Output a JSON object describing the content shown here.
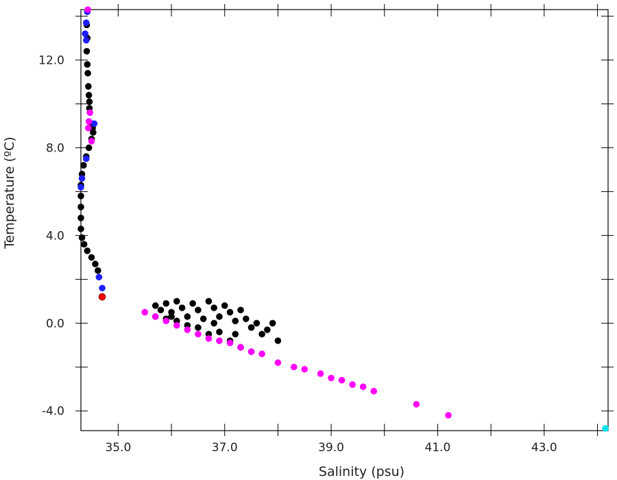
{
  "chart_data": {
    "type": "scatter",
    "title": "",
    "xlabel": "Salinity (psu)",
    "ylabel": "Temperature (ºC)",
    "xlim": [
      34.3,
      44.2
    ],
    "ylim": [
      -4.9,
      14.3
    ],
    "x_ticks": [
      35,
      37,
      39,
      41,
      43
    ],
    "x_tick_labels": [
      "35.0",
      "37.0",
      "39.0",
      "41.0",
      "43.0"
    ],
    "y_ticks": [
      -4,
      0,
      4,
      8,
      12
    ],
    "y_tick_labels": [
      "-4.0",
      "0.0",
      "4.0",
      "8.0",
      "12.0"
    ],
    "grid": false,
    "legend": "none",
    "series": [
      {
        "color": "#000000",
        "points": [
          [
            34.41,
            13.6
          ],
          [
            34.42,
            13.0
          ],
          [
            34.41,
            12.4
          ],
          [
            34.42,
            11.8
          ],
          [
            34.43,
            11.4
          ],
          [
            34.44,
            10.8
          ],
          [
            34.45,
            10.4
          ],
          [
            34.46,
            10.1
          ],
          [
            34.46,
            9.8
          ],
          [
            34.5,
            9.1
          ],
          [
            34.52,
            8.9
          ],
          [
            34.53,
            8.7
          ],
          [
            34.5,
            8.4
          ],
          [
            34.45,
            8.0
          ],
          [
            34.4,
            7.6
          ],
          [
            34.35,
            7.2
          ],
          [
            34.32,
            6.8
          ],
          [
            34.3,
            6.3
          ],
          [
            34.28,
            5.8
          ],
          [
            34.28,
            5.3
          ],
          [
            34.29,
            4.8
          ],
          [
            34.3,
            4.3
          ],
          [
            34.32,
            3.9
          ],
          [
            34.36,
            3.6
          ],
          [
            34.42,
            3.3
          ],
          [
            34.5,
            3.0
          ],
          [
            34.57,
            2.7
          ],
          [
            34.62,
            2.4
          ],
          [
            35.7,
            0.8
          ],
          [
            35.8,
            0.6
          ],
          [
            35.9,
            0.9
          ],
          [
            36.0,
            0.5
          ],
          [
            36.1,
            1.0
          ],
          [
            36.2,
            0.7
          ],
          [
            36.3,
            0.3
          ],
          [
            36.4,
            0.9
          ],
          [
            36.5,
            0.6
          ],
          [
            36.6,
            0.2
          ],
          [
            36.7,
            1.0
          ],
          [
            36.8,
            0.7
          ],
          [
            36.9,
            0.3
          ],
          [
            37.0,
            0.8
          ],
          [
            37.1,
            0.5
          ],
          [
            37.2,
            0.1
          ],
          [
            37.3,
            0.6
          ],
          [
            37.4,
            0.2
          ],
          [
            37.5,
            -0.2
          ],
          [
            37.6,
            0.0
          ],
          [
            37.7,
            -0.5
          ],
          [
            37.8,
            -0.3
          ],
          [
            37.9,
            0.0
          ],
          [
            38.0,
            -0.8
          ],
          [
            37.5,
            -1.3
          ],
          [
            37.3,
            -1.1
          ],
          [
            37.1,
            -0.8
          ],
          [
            36.9,
            -0.4
          ],
          [
            36.7,
            -0.5
          ],
          [
            36.5,
            -0.2
          ],
          [
            36.3,
            -0.1
          ],
          [
            36.1,
            0.1
          ],
          [
            35.9,
            0.2
          ],
          [
            35.7,
            0.3
          ],
          [
            36.0,
            0.3
          ],
          [
            36.8,
            0.0
          ],
          [
            37.2,
            -0.5
          ]
        ]
      },
      {
        "color": "#1f1fff",
        "points": [
          [
            34.42,
            14.2
          ],
          [
            34.4,
            13.7
          ],
          [
            34.38,
            13.2
          ],
          [
            34.4,
            12.9
          ],
          [
            34.55,
            9.1
          ],
          [
            34.4,
            7.5
          ],
          [
            34.32,
            6.6
          ],
          [
            34.29,
            6.2
          ],
          [
            34.64,
            2.1
          ],
          [
            34.7,
            1.6
          ]
        ]
      },
      {
        "color": "#ff00ff",
        "points": [
          [
            34.43,
            14.3
          ],
          [
            34.47,
            9.6
          ],
          [
            34.45,
            9.2
          ],
          [
            34.44,
            8.9
          ],
          [
            34.5,
            8.3
          ],
          [
            35.5,
            0.5
          ],
          [
            35.7,
            0.3
          ],
          [
            35.9,
            0.1
          ],
          [
            36.1,
            -0.1
          ],
          [
            36.3,
            -0.3
          ],
          [
            36.5,
            -0.5
          ],
          [
            36.7,
            -0.7
          ],
          [
            36.9,
            -0.8
          ],
          [
            37.1,
            -0.9
          ],
          [
            37.3,
            -1.1
          ],
          [
            37.5,
            -1.3
          ],
          [
            37.7,
            -1.4
          ],
          [
            38.0,
            -1.8
          ],
          [
            38.3,
            -2.0
          ],
          [
            38.5,
            -2.1
          ],
          [
            38.8,
            -2.3
          ],
          [
            39.0,
            -2.5
          ],
          [
            39.2,
            -2.6
          ],
          [
            39.4,
            -2.8
          ],
          [
            39.6,
            -2.9
          ],
          [
            39.8,
            -3.1
          ],
          [
            40.6,
            -3.7
          ],
          [
            41.2,
            -4.2
          ]
        ]
      },
      {
        "color": "#ff0000",
        "points": [
          [
            34.7,
            1.2
          ]
        ]
      },
      {
        "color": "#00e5ee",
        "points": [
          [
            44.15,
            -4.8
          ]
        ]
      }
    ]
  }
}
